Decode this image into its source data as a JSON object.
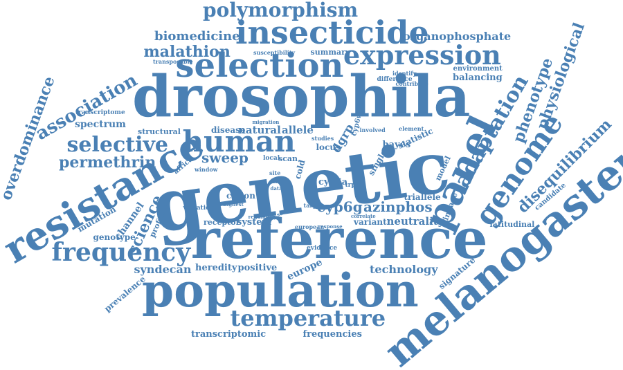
{
  "palette": {
    "word": "#4a80b4",
    "background": "#ffffff"
  },
  "words": [
    {
      "id": "genetic",
      "text": "genetic"
    },
    {
      "id": "drosophila",
      "text": "drosophila"
    },
    {
      "id": "reference",
      "text": "reference"
    },
    {
      "id": "population",
      "text": "population"
    },
    {
      "id": "resistance",
      "text": "resistance"
    },
    {
      "id": "melanogaster",
      "text": "melanogaster"
    },
    {
      "id": "selection",
      "text": "selection"
    },
    {
      "id": "insecticide",
      "text": "insecticide"
    },
    {
      "id": "panel",
      "text": "panel"
    },
    {
      "id": "human",
      "text": "human"
    },
    {
      "id": "expression",
      "text": "expression"
    },
    {
      "id": "frequency",
      "text": "frequency"
    },
    {
      "id": "polymorphism",
      "text": "polymorphism"
    },
    {
      "id": "temperature",
      "text": "temperature"
    },
    {
      "id": "genome",
      "text": "genome"
    },
    {
      "id": "adaptation",
      "text": "adaptation"
    },
    {
      "id": "selective",
      "text": "selective"
    },
    {
      "id": "association",
      "text": "association"
    },
    {
      "id": "permethrin",
      "text": "permethrin"
    },
    {
      "id": "overdominance",
      "text": "overdominance"
    },
    {
      "id": "malathion",
      "text": "malathion"
    },
    {
      "id": "biomedicine",
      "text": "biomedicine"
    },
    {
      "id": "organophosphate",
      "text": "organophosphate"
    },
    {
      "id": "phenotype",
      "text": "phenotype"
    },
    {
      "id": "physiological",
      "text": "physiological"
    },
    {
      "id": "disequilibrium",
      "text": "disequilibrium"
    },
    {
      "id": "azinphos",
      "text": "azinphos"
    },
    {
      "id": "cyp6g",
      "text": "cyp6g"
    },
    {
      "id": "sweep",
      "text": "sweep"
    },
    {
      "id": "neutrality",
      "text": "neutrality"
    },
    {
      "id": "technology",
      "text": "technology"
    },
    {
      "id": "syndecan",
      "text": "syndecan"
    },
    {
      "id": "science",
      "text": "science"
    },
    {
      "id": "spectrum",
      "text": "spectrum"
    },
    {
      "id": "natural",
      "text": "natural"
    },
    {
      "id": "allele",
      "text": "allele"
    },
    {
      "id": "disease",
      "text": "disease"
    },
    {
      "id": "genotype",
      "text": "genotype"
    },
    {
      "id": "transcriptomic",
      "text": "transcriptomic"
    },
    {
      "id": "frequencies",
      "text": "frequencies"
    },
    {
      "id": "heredity",
      "text": "heredity"
    },
    {
      "id": "positive",
      "text": "positive"
    },
    {
      "id": "europe",
      "text": "europe"
    },
    {
      "id": "system",
      "text": "system"
    },
    {
      "id": "receptor",
      "text": "receptor"
    },
    {
      "id": "variant",
      "text": "variant"
    },
    {
      "id": "triallele",
      "text": "triallele"
    },
    {
      "id": "balancing",
      "text": "balancing"
    },
    {
      "id": "environment",
      "text": "environment"
    },
    {
      "id": "summary",
      "text": "summary"
    },
    {
      "id": "susceptibility",
      "text": "susceptibility"
    },
    {
      "id": "transposable",
      "text": "transposable"
    },
    {
      "id": "structural",
      "text": "structural"
    },
    {
      "id": "transcriptome",
      "text": "transcriptome"
    },
    {
      "id": "mutation",
      "text": "mutation"
    },
    {
      "id": "channel",
      "text": "channel"
    },
    {
      "id": "profiling",
      "text": "profiling"
    },
    {
      "id": "prevalence",
      "text": "prevalence"
    },
    {
      "id": "signature",
      "text": "signature"
    },
    {
      "id": "latitudinal",
      "text": "latitudinal"
    },
    {
      "id": "candidate",
      "text": "candidate"
    },
    {
      "id": "linkage",
      "text": "linkage"
    },
    {
      "id": "model",
      "text": "model"
    },
    {
      "id": "statistic",
      "text": "statistic"
    },
    {
      "id": "bayes",
      "text": "bayes"
    },
    {
      "id": "single",
      "text": "single"
    },
    {
      "id": "cation",
      "text": "cation"
    },
    {
      "id": "variation",
      "text": "variation"
    },
    {
      "id": "cyp6a",
      "text": "cyp6a"
    },
    {
      "id": "cyp6w",
      "text": "cyp6w"
    },
    {
      "id": "dgrp",
      "text": "dgrp"
    },
    {
      "id": "locus",
      "text": "locus"
    },
    {
      "id": "studies",
      "text": "studies"
    },
    {
      "id": "involved",
      "text": "involved"
    },
    {
      "id": "element",
      "text": "element"
    },
    {
      "id": "identify",
      "text": "identify"
    },
    {
      "id": "difference",
      "text": "difference"
    },
    {
      "id": "contribute",
      "text": "contribute"
    },
    {
      "id": "africa",
      "text": "africa"
    },
    {
      "id": "window",
      "text": "window"
    },
    {
      "id": "cold",
      "text": "cold"
    },
    {
      "id": "scan",
      "text": "scan"
    },
    {
      "id": "local",
      "text": "local"
    },
    {
      "id": "site",
      "text": "site"
    },
    {
      "id": "asia",
      "text": "asia"
    },
    {
      "id": "trpm",
      "text": "trpm"
    },
    {
      "id": "target",
      "text": "target"
    },
    {
      "id": "evidence",
      "text": "evidence"
    },
    {
      "id": "european",
      "text": "european"
    },
    {
      "id": "regulatory",
      "text": "regulatory"
    },
    {
      "id": "migration",
      "text": "migration"
    },
    {
      "id": "data",
      "text": "data"
    },
    {
      "id": "highest",
      "text": "highest"
    },
    {
      "id": "correlate",
      "text": "correlate"
    },
    {
      "id": "response",
      "text": "response"
    },
    {
      "id": "survival",
      "text": "survival"
    }
  ]
}
